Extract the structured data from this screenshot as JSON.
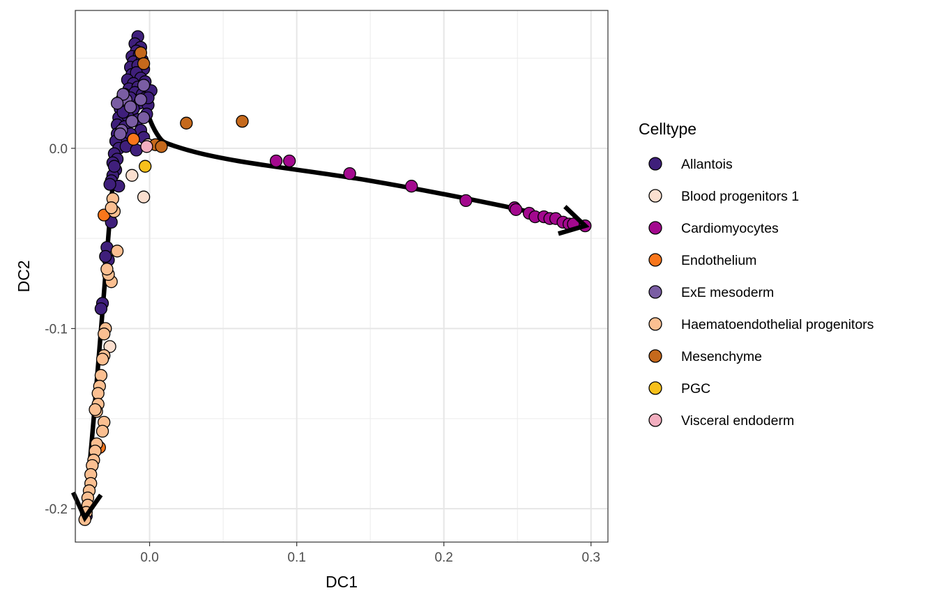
{
  "chart_data": {
    "type": "scatter",
    "xlabel": "DC1",
    "ylabel": "DC2",
    "xlim": [
      -0.0505,
      0.3115
    ],
    "ylim": [
      -0.2185,
      0.0765
    ],
    "xticks": [
      {
        "value": 0.0,
        "label": "0.0"
      },
      {
        "value": 0.1,
        "label": "0.1"
      },
      {
        "value": 0.2,
        "label": "0.2"
      },
      {
        "value": 0.3,
        "label": "0.3"
      }
    ],
    "yticks": [
      {
        "value": 0.0,
        "label": "0.0"
      },
      {
        "value": -0.1,
        "label": "-0.1"
      },
      {
        "value": -0.2,
        "label": "-0.2"
      }
    ],
    "grid": true,
    "legend": {
      "title": "Celltype",
      "position": "right",
      "entries": [
        {
          "name": "Allantois",
          "color": "#3f1f7b"
        },
        {
          "name": "Blood progenitors 1",
          "color": "#fbdfcf"
        },
        {
          "name": "Cardiomyocytes",
          "color": "#a3098e"
        },
        {
          "name": "Endothelium",
          "color": "#f9761b"
        },
        {
          "name": "ExE mesoderm",
          "color": "#7a5da3"
        },
        {
          "name": "Haematoendothelial progenitors",
          "color": "#fbbf91"
        },
        {
          "name": "Mesenchyme",
          "color": "#c5691c"
        },
        {
          "name": "PGC",
          "color": "#f7c01b"
        },
        {
          "name": "Visceral endoderm",
          "color": "#f2aebf"
        }
      ]
    },
    "series": [
      {
        "name": "Allantois",
        "points": [
          [
            -0.008,
            0.062
          ],
          [
            -0.01,
            0.058
          ],
          [
            -0.006,
            0.056
          ],
          [
            -0.009,
            0.054
          ],
          [
            -0.012,
            0.051
          ],
          [
            -0.007,
            0.052
          ],
          [
            -0.011,
            0.048
          ],
          [
            -0.005,
            0.049
          ],
          [
            -0.013,
            0.045
          ],
          [
            -0.008,
            0.046
          ],
          [
            -0.004,
            0.044
          ],
          [
            -0.012,
            0.041
          ],
          [
            -0.009,
            0.042
          ],
          [
            -0.015,
            0.038
          ],
          [
            -0.006,
            0.039
          ],
          [
            -0.011,
            0.036
          ],
          [
            -0.003,
            0.037
          ],
          [
            -0.014,
            0.033
          ],
          [
            -0.008,
            0.034
          ],
          [
            -0.017,
            0.03
          ],
          [
            -0.01,
            0.031
          ],
          [
            -0.005,
            0.03
          ],
          [
            -0.019,
            0.027
          ],
          [
            -0.013,
            0.028
          ],
          [
            -0.003,
            0.028
          ],
          [
            -0.016,
            0.025
          ],
          [
            -0.007,
            0.025
          ],
          [
            0.001,
            0.032
          ],
          [
            -0.02,
            0.022
          ],
          [
            -0.011,
            0.022
          ],
          [
            -0.021,
            0.017
          ],
          [
            -0.015,
            0.018
          ],
          [
            -0.022,
            0.013
          ],
          [
            -0.017,
            0.012
          ],
          [
            -0.008,
            0.016
          ],
          [
            -0.022,
            0.008
          ],
          [
            -0.019,
            0.006
          ],
          [
            -0.023,
            0.004
          ],
          [
            -0.021,
            0.0
          ],
          [
            -0.016,
            0.001
          ],
          [
            -0.009,
            -0.001
          ],
          [
            -0.024,
            -0.003
          ],
          [
            -0.022,
            -0.006
          ],
          [
            -0.025,
            -0.008
          ],
          [
            -0.023,
            -0.012
          ],
          [
            -0.025,
            -0.015
          ],
          [
            -0.026,
            -0.018
          ],
          [
            -0.021,
            -0.021
          ],
          [
            -0.027,
            -0.02
          ],
          [
            -0.024,
            -0.01
          ],
          [
            -0.027,
            -0.038
          ],
          [
            -0.026,
            -0.041
          ],
          [
            -0.029,
            -0.055
          ],
          [
            -0.028,
            -0.062
          ],
          [
            -0.03,
            -0.06
          ],
          [
            -0.032,
            -0.086
          ],
          [
            -0.033,
            -0.089
          ],
          [
            -0.043,
            -0.204
          ],
          [
            -0.001,
            0.024
          ],
          [
            -0.002,
            0.019
          ],
          [
            -0.001,
            0.028
          ],
          [
            -0.006,
            0.01
          ],
          [
            -0.018,
            0.02
          ],
          [
            -0.004,
            0.006
          ],
          [
            -0.013,
            0.008
          ]
        ]
      },
      {
        "name": "Blood progenitors 1",
        "points": [
          [
            -0.004,
            -0.027
          ],
          [
            -0.027,
            -0.11
          ],
          [
            -0.012,
            -0.015
          ],
          [
            -0.001,
            0.002
          ]
        ]
      },
      {
        "name": "Cardiomyocytes",
        "points": [
          [
            0.086,
            -0.007
          ],
          [
            0.095,
            -0.007
          ],
          [
            0.136,
            -0.014
          ],
          [
            0.178,
            -0.021
          ],
          [
            0.215,
            -0.029
          ],
          [
            0.248,
            -0.033
          ],
          [
            0.249,
            -0.034
          ],
          [
            0.258,
            -0.036
          ],
          [
            0.262,
            -0.038
          ],
          [
            0.268,
            -0.038
          ],
          [
            0.272,
            -0.039
          ],
          [
            0.276,
            -0.039
          ],
          [
            0.281,
            -0.041
          ],
          [
            0.285,
            -0.042
          ],
          [
            0.288,
            -0.042
          ],
          [
            0.296,
            -0.043
          ]
        ]
      },
      {
        "name": "Endothelium",
        "points": [
          [
            -0.011,
            0.005
          ],
          [
            -0.034,
            -0.166
          ],
          [
            -0.031,
            -0.037
          ]
        ]
      },
      {
        "name": "ExE mesoderm",
        "points": [
          [
            -0.016,
            0.027
          ],
          [
            -0.019,
            0.01
          ],
          [
            -0.013,
            0.023
          ],
          [
            -0.018,
            0.03
          ],
          [
            -0.022,
            0.025
          ],
          [
            -0.012,
            0.015
          ],
          [
            -0.004,
            0.035
          ],
          [
            -0.02,
            0.008
          ],
          [
            -0.006,
            0.027
          ],
          [
            -0.004,
            0.017
          ]
        ]
      },
      {
        "name": "Haematoendothelial progenitors",
        "points": [
          [
            -0.022,
            -0.057
          ],
          [
            -0.026,
            -0.074
          ],
          [
            -0.028,
            -0.07
          ],
          [
            -0.029,
            -0.067
          ],
          [
            -0.03,
            -0.1
          ],
          [
            -0.031,
            -0.103
          ],
          [
            -0.031,
            -0.115
          ],
          [
            -0.032,
            -0.117
          ],
          [
            -0.033,
            -0.126
          ],
          [
            -0.034,
            -0.132
          ],
          [
            -0.035,
            -0.136
          ],
          [
            -0.035,
            -0.142
          ],
          [
            -0.036,
            -0.146
          ],
          [
            -0.031,
            -0.152
          ],
          [
            -0.032,
            -0.157
          ],
          [
            -0.037,
            -0.145
          ],
          [
            -0.036,
            -0.164
          ],
          [
            -0.037,
            -0.168
          ],
          [
            -0.038,
            -0.173
          ],
          [
            -0.039,
            -0.176
          ],
          [
            -0.04,
            -0.181
          ],
          [
            -0.04,
            -0.186
          ],
          [
            -0.041,
            -0.19
          ],
          [
            -0.042,
            -0.194
          ],
          [
            -0.042,
            -0.198
          ],
          [
            -0.043,
            -0.202
          ],
          [
            -0.044,
            -0.206
          ],
          [
            -0.024,
            -0.035
          ],
          [
            -0.025,
            -0.028
          ],
          [
            -0.026,
            -0.033
          ]
        ]
      },
      {
        "name": "Mesenchyme",
        "points": [
          [
            -0.006,
            0.053
          ],
          [
            -0.004,
            0.047
          ],
          [
            0.025,
            0.014
          ],
          [
            0.063,
            0.015
          ],
          [
            0.004,
            0.002
          ],
          [
            0.008,
            0.001
          ]
        ]
      },
      {
        "name": "PGC",
        "points": [
          [
            -0.003,
            -0.01
          ]
        ]
      },
      {
        "name": "Visceral endoderm",
        "points": [
          [
            -0.002,
            0.001
          ]
        ]
      }
    ],
    "trajectories": [
      {
        "name": "lineage-1",
        "points": [
          [
            -0.008,
            0.058
          ],
          [
            -0.012,
            0.04
          ],
          [
            -0.019,
            0.015
          ],
          [
            -0.025,
            -0.02
          ],
          [
            -0.031,
            -0.08
          ],
          [
            -0.038,
            -0.15
          ],
          [
            -0.044,
            -0.205
          ]
        ]
      },
      {
        "name": "lineage-2",
        "points": [
          [
            -0.008,
            0.058
          ],
          [
            -0.005,
            0.03
          ],
          [
            0.005,
            0.008
          ],
          [
            0.018,
            0.001
          ],
          [
            0.06,
            -0.007
          ],
          [
            0.15,
            -0.018
          ],
          [
            0.24,
            -0.032
          ],
          [
            0.296,
            -0.043
          ]
        ]
      }
    ]
  }
}
